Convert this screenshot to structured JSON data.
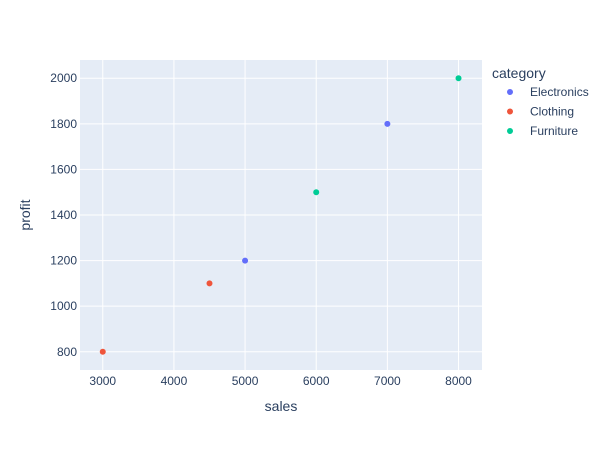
{
  "chart_data": {
    "type": "scatter",
    "title": "",
    "xlabel": "sales",
    "ylabel": "profit",
    "xlim": [
      2680,
      8330
    ],
    "ylim": [
      720,
      2080
    ],
    "x_ticks": [
      3000,
      4000,
      5000,
      6000,
      7000,
      8000
    ],
    "y_ticks": [
      800,
      1000,
      1200,
      1400,
      1600,
      1800,
      2000
    ],
    "grid": true,
    "legend": {
      "title": "category",
      "placement": "right"
    },
    "series": [
      {
        "name": "Electronics",
        "color": "#636efa",
        "points": [
          {
            "x": 5000,
            "y": 1200
          },
          {
            "x": 7000,
            "y": 1800
          }
        ]
      },
      {
        "name": "Clothing",
        "color": "#ef553b",
        "points": [
          {
            "x": 3000,
            "y": 800
          },
          {
            "x": 4500,
            "y": 1100
          }
        ]
      },
      {
        "name": "Furniture",
        "color": "#00cc96",
        "points": [
          {
            "x": 6000,
            "y": 1500
          },
          {
            "x": 8000,
            "y": 2000
          }
        ]
      }
    ],
    "plot_background": "#e5ecf6",
    "gridline_color": "#ffffff"
  }
}
